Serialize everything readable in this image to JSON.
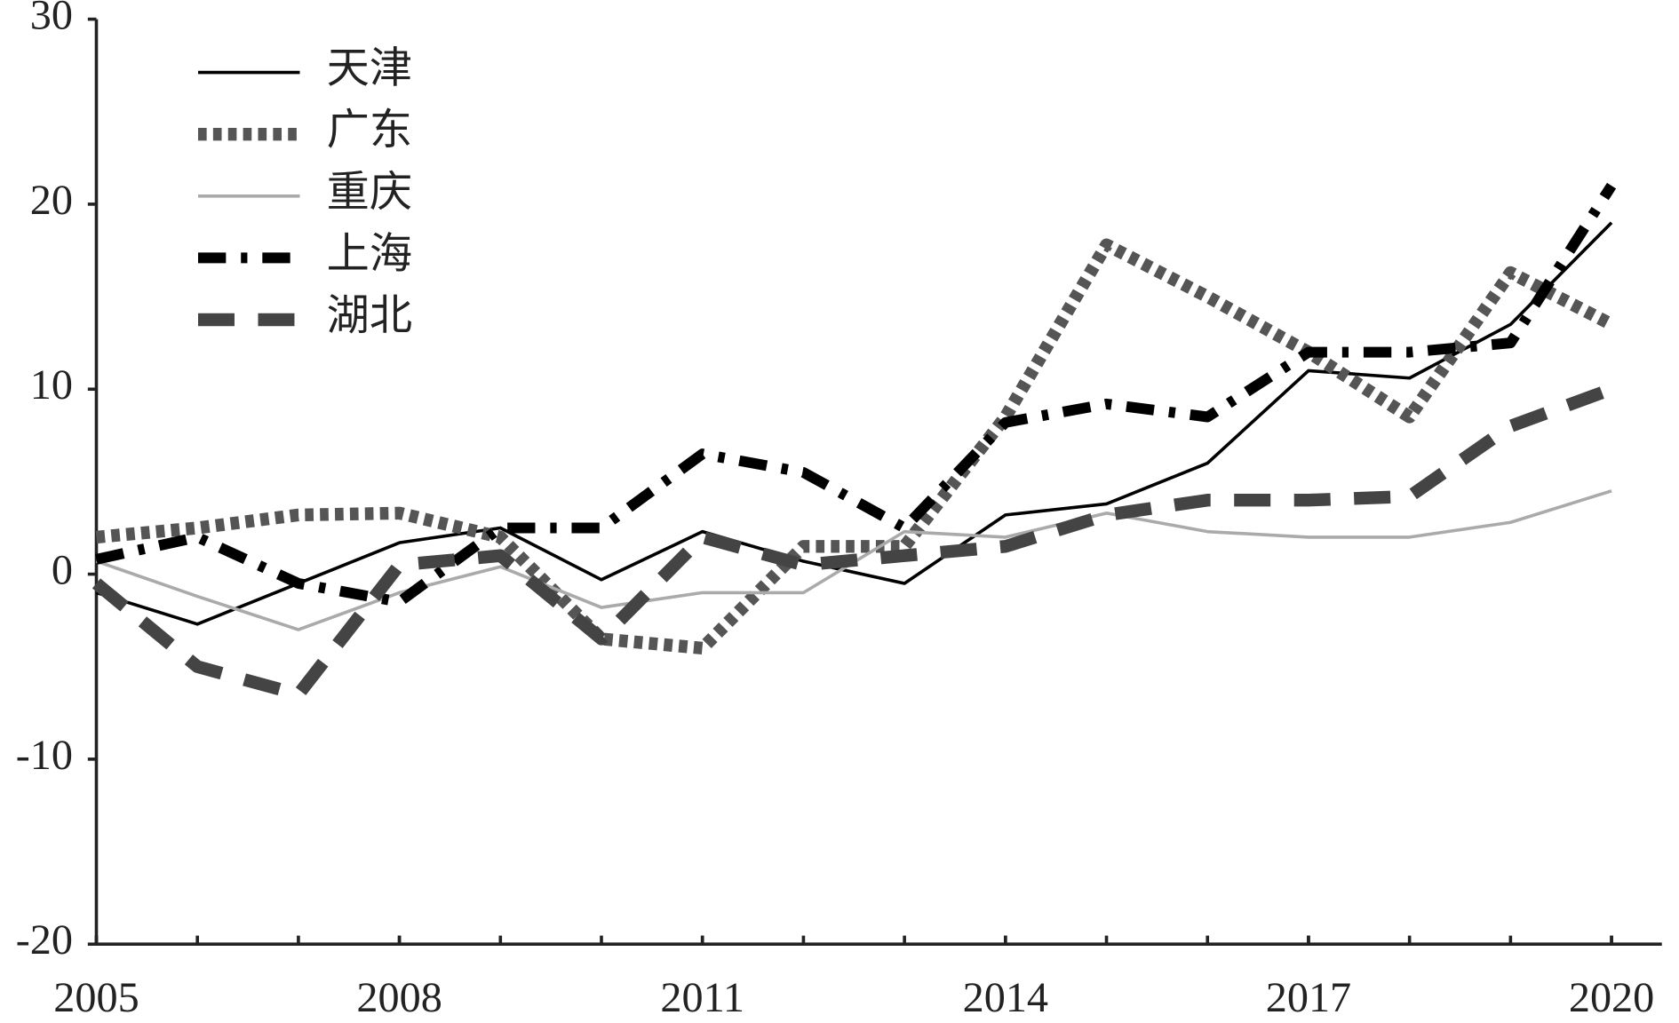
{
  "chart_data": {
    "type": "line",
    "x": [
      2005,
      2006,
      2007,
      2008,
      2009,
      2010,
      2011,
      2012,
      2013,
      2014,
      2015,
      2016,
      2017,
      2018,
      2019,
      2020
    ],
    "series": [
      {
        "name": "天津",
        "color": "#000000",
        "style": "solid",
        "values": [
          -1,
          -2.7,
          -0.5,
          1.7,
          2.5,
          -0.3,
          2.3,
          0.7,
          -0.5,
          3.2,
          3.8,
          6,
          11,
          10.6,
          13.5,
          19
        ]
      },
      {
        "name": "广东",
        "color": "#555555",
        "style": "dotted",
        "values": [
          2,
          2.5,
          3.2,
          3.3,
          2,
          -3.5,
          -4,
          1.5,
          1.5,
          8.5,
          17.8,
          15,
          12,
          8.5,
          16.3,
          13.5
        ]
      },
      {
        "name": "重庆",
        "color": "#aaaaaa",
        "style": "solid",
        "values": [
          0.7,
          -1.2,
          -3,
          -1,
          0.4,
          -1.8,
          -1,
          -1,
          2.3,
          2,
          3.3,
          2.3,
          2,
          2,
          2.8,
          4.5
        ]
      },
      {
        "name": "上海",
        "color": "#000000",
        "style": "dashdot",
        "values": [
          0.8,
          2,
          -0.5,
          -1.5,
          2.5,
          2.5,
          6.5,
          5.5,
          2.5,
          8.2,
          9.2,
          8.5,
          12,
          12,
          12.5,
          21
        ]
      },
      {
        "name": "湖北",
        "color": "#444444",
        "style": "dashed",
        "values": [
          -0.5,
          -5,
          -6.5,
          0.5,
          1,
          -3.5,
          2,
          0.5,
          1,
          1.5,
          3.2,
          4,
          4,
          4.2,
          8,
          10
        ]
      }
    ],
    "xlim": [
      2005,
      2020
    ],
    "xticks": [
      2005,
      2008,
      2011,
      2014,
      2017,
      2020
    ],
    "ylim": [
      -20,
      30
    ],
    "yticks": [
      -20,
      -10,
      0,
      10,
      20,
      30
    ],
    "legend": "top-left"
  }
}
